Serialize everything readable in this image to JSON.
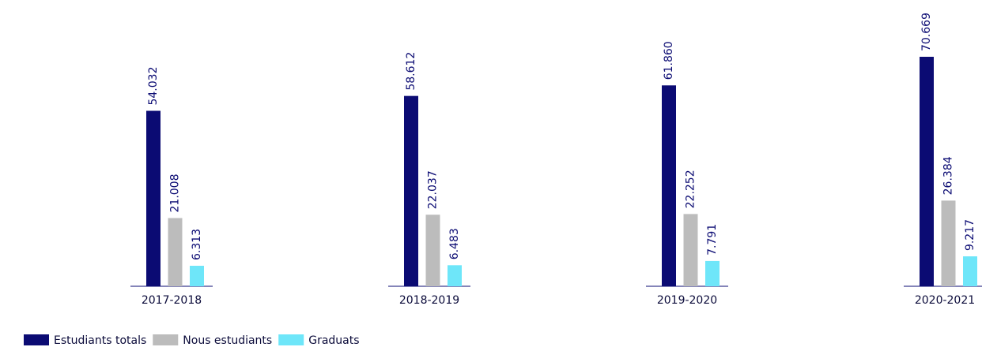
{
  "chart_data": {
    "type": "bar",
    "categories": [
      "2017-2018",
      "2018-2019",
      "2019-2020",
      "2020-2021"
    ],
    "series": [
      {
        "name": "Estudiants totals",
        "color": "#0b0b73",
        "values": [
          54032,
          58612,
          61860,
          70669
        ],
        "value_labels": [
          "54.032",
          "58.612",
          "61.860",
          "70.669"
        ]
      },
      {
        "name": "Nous estudiants",
        "color": "#bcbcbc",
        "values": [
          21008,
          22037,
          22252,
          26384
        ],
        "value_labels": [
          "21.008",
          "22.037",
          "22.252",
          "26.384"
        ]
      },
      {
        "name": "Graduats",
        "color": "#6ee6f9",
        "values": [
          6313,
          6483,
          7791,
          9217
        ],
        "value_labels": [
          "6.313",
          "6.483",
          "7.791",
          "9.217"
        ]
      }
    ],
    "legend": "bottom-left"
  }
}
